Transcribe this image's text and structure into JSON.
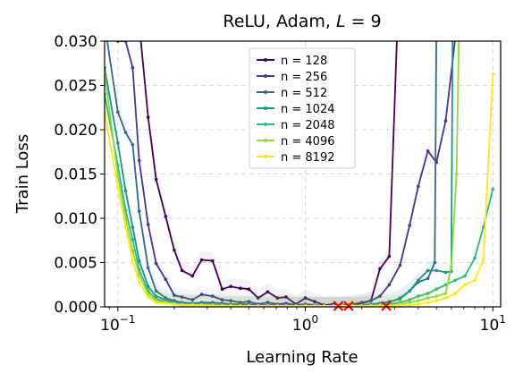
{
  "chart_data": {
    "type": "line",
    "title": "ReLU, Adam, L = 9",
    "xlabel": "Learning Rate",
    "ylabel": "Train Loss",
    "xscale": "log",
    "xlim": [
      0.085,
      11
    ],
    "ylim": [
      0,
      0.03
    ],
    "grid": true,
    "legend_position": "top-center",
    "y_ticks": [
      "0.000",
      "0.005",
      "0.010",
      "0.015",
      "0.020",
      "0.025",
      "0.030"
    ],
    "x_ticks": [
      {
        "value": 0.1,
        "base": "10",
        "exp": "−1"
      },
      {
        "value": 1,
        "base": "10",
        "exp": "0"
      },
      {
        "value": 10,
        "base": "10",
        "exp": "1"
      }
    ],
    "divergence_markers_x": [
      1.5,
      1.7,
      2.7
    ],
    "divergence_marker_color": "#ff0000",
    "series": [
      {
        "name": "n = 128",
        "color": "#440154",
        "x": [
          0.085,
          0.1,
          0.11,
          0.12,
          0.13,
          0.145,
          0.16,
          0.18,
          0.2,
          0.22,
          0.25,
          0.28,
          0.32,
          0.36,
          0.4,
          0.45,
          0.5,
          0.56,
          0.63,
          0.71,
          0.79,
          0.89,
          1.0,
          1.12,
          1.26,
          1.41,
          1.58,
          1.78,
          2.0,
          2.24,
          2.5,
          2.8,
          3.1
        ],
        "y": [
          0.032,
          0.032,
          0.032,
          0.032,
          0.032,
          0.0214,
          0.0144,
          0.0102,
          0.0064,
          0.0041,
          0.0035,
          0.0053,
          0.0052,
          0.002,
          0.0023,
          0.0021,
          0.002,
          0.001,
          0.0017,
          0.001,
          0.0011,
          0.0003,
          0.001,
          0.0006,
          0.0002,
          0.0003,
          0.0001,
          0.0003,
          0.0004,
          0.0007,
          0.0043,
          0.0057,
          0.032
        ]
      },
      {
        "name": "n = 256",
        "color": "#443983",
        "x": [
          0.085,
          0.1,
          0.11,
          0.12,
          0.13,
          0.145,
          0.16,
          0.18,
          0.2,
          0.22,
          0.25,
          0.28,
          0.32,
          0.36,
          0.4,
          0.45,
          0.5,
          0.56,
          0.63,
          0.71,
          0.79,
          0.89,
          1.0,
          1.12,
          1.26,
          1.41,
          1.58,
          1.78,
          2.0,
          2.24,
          2.5,
          2.8,
          3.2,
          3.6,
          4.0,
          4.5,
          5.0,
          5.6,
          6.3,
          6.8
        ],
        "y": [
          0.032,
          0.03,
          0.03,
          0.027,
          0.0165,
          0.0093,
          0.0049,
          0.0031,
          0.0013,
          0.0011,
          0.0008,
          0.0014,
          0.0012,
          0.0008,
          0.0007,
          0.0005,
          0.0006,
          0.0003,
          0.0005,
          0.0003,
          0.0004,
          0.0002,
          0.0003,
          0.0002,
          0.0001,
          0.0001,
          0.0002,
          0.0003,
          0.0005,
          0.0007,
          0.0012,
          0.0025,
          0.0047,
          0.0092,
          0.0136,
          0.0176,
          0.0163,
          0.021,
          0.0303,
          0.032
        ]
      },
      {
        "name": "n = 512",
        "color": "#31688e",
        "x": [
          0.085,
          0.1,
          0.11,
          0.12,
          0.13,
          0.145,
          0.16,
          0.18,
          0.2,
          0.22,
          0.25,
          0.28,
          0.32,
          0.36,
          0.4,
          0.45,
          0.5,
          0.56,
          0.63,
          0.71,
          0.79,
          0.89,
          1.0,
          1.12,
          1.26,
          1.41,
          1.58,
          1.78,
          2.0,
          2.24,
          2.5,
          2.8,
          3.2,
          3.6,
          4.0,
          4.5,
          4.9,
          5.0
        ],
        "y": [
          0.032,
          0.022,
          0.0197,
          0.0183,
          0.0108,
          0.0044,
          0.0018,
          0.001,
          0.0007,
          0.0005,
          0.0004,
          0.0005,
          0.0005,
          0.0004,
          0.0003,
          0.0003,
          0.0003,
          0.0002,
          0.0002,
          0.0002,
          0.0002,
          0.0001,
          0.0001,
          0.0001,
          0.0001,
          0.0001,
          0.0001,
          0.0001,
          0.0002,
          0.0003,
          0.0004,
          0.0006,
          0.0009,
          0.0018,
          0.0028,
          0.0032,
          0.005,
          0.032
        ]
      },
      {
        "name": "n = 1024",
        "color": "#21918c",
        "x": [
          0.085,
          0.1,
          0.11,
          0.12,
          0.13,
          0.145,
          0.16,
          0.18,
          0.2,
          0.22,
          0.25,
          0.28,
          0.32,
          0.36,
          0.4,
          0.45,
          0.5,
          0.56,
          0.63,
          0.71,
          0.79,
          0.89,
          1.0,
          1.12,
          1.26,
          1.41,
          1.58,
          1.78,
          2.0,
          2.24,
          2.5,
          2.8,
          3.2,
          3.6,
          4.0,
          4.5,
          5.0,
          5.6,
          6.0,
          6.1
        ],
        "y": [
          0.027,
          0.0185,
          0.0131,
          0.009,
          0.0052,
          0.0023,
          0.0012,
          0.0008,
          0.0005,
          0.0004,
          0.0003,
          0.0003,
          0.0003,
          0.0002,
          0.0002,
          0.0002,
          0.0002,
          0.0001,
          0.0001,
          0.0001,
          0.0001,
          0.0001,
          0.0001,
          0.0001,
          0.0001,
          0.0001,
          0.0001,
          0.0001,
          0.0001,
          0.0002,
          0.0003,
          0.0005,
          0.001,
          0.0018,
          0.003,
          0.0041,
          0.0041,
          0.0039,
          0.004,
          0.032
        ]
      },
      {
        "name": "n = 2048",
        "color": "#35b779",
        "x": [
          0.085,
          0.1,
          0.11,
          0.12,
          0.13,
          0.145,
          0.16,
          0.18,
          0.2,
          0.22,
          0.25,
          0.28,
          0.32,
          0.36,
          0.4,
          0.45,
          0.5,
          0.56,
          0.63,
          0.71,
          0.79,
          0.89,
          1.0,
          1.12,
          1.26,
          1.41,
          1.58,
          1.78,
          2.0,
          2.24,
          2.5,
          2.8,
          3.2,
          3.6,
          4.0,
          4.5,
          5.0,
          5.6,
          6.3,
          7.1,
          8.0,
          8.9,
          10.0
        ],
        "y": [
          0.024,
          0.016,
          0.0109,
          0.0076,
          0.0042,
          0.0018,
          0.0009,
          0.0006,
          0.0004,
          0.0003,
          0.0003,
          0.0002,
          0.0002,
          0.0002,
          0.0002,
          0.0001,
          0.0001,
          0.0001,
          0.0001,
          0.0001,
          0.0001,
          0.0001,
          0.0001,
          0.0001,
          0.0001,
          0.0001,
          0.0001,
          0.0001,
          0.0001,
          0.0002,
          0.0002,
          0.0003,
          0.0005,
          0.0008,
          0.0012,
          0.0015,
          0.002,
          0.0025,
          0.003,
          0.0035,
          0.0055,
          0.009,
          0.0133
        ]
      },
      {
        "name": "n = 4096",
        "color": "#90d743",
        "x": [
          0.085,
          0.1,
          0.11,
          0.12,
          0.13,
          0.145,
          0.16,
          0.18,
          0.2,
          0.22,
          0.25,
          0.28,
          0.32,
          0.36,
          0.4,
          0.45,
          0.5,
          0.56,
          0.63,
          0.71,
          0.79,
          0.89,
          1.0,
          1.12,
          1.26,
          1.41,
          1.58,
          1.78,
          2.0,
          2.24,
          2.5,
          2.8,
          3.2,
          3.6,
          4.0,
          4.5,
          5.0,
          5.6,
          6.0,
          6.4,
          6.6
        ],
        "y": [
          0.0265,
          0.0148,
          0.01,
          0.0063,
          0.0036,
          0.0014,
          0.0007,
          0.0005,
          0.0003,
          0.0002,
          0.0002,
          0.0002,
          0.0002,
          0.0001,
          0.0001,
          0.0001,
          0.0001,
          0.0001,
          0.0001,
          0.0001,
          0.0001,
          0.0001,
          0.0001,
          0.0001,
          0.0001,
          0.0001,
          0.0001,
          0.0001,
          0.0001,
          0.0001,
          0.0002,
          0.0002,
          0.0003,
          0.0005,
          0.0007,
          0.001,
          0.0012,
          0.0015,
          0.0045,
          0.015,
          0.032
        ]
      },
      {
        "name": "n = 8192",
        "color": "#fde725",
        "x": [
          0.085,
          0.1,
          0.11,
          0.12,
          0.13,
          0.145,
          0.16,
          0.18,
          0.2,
          0.22,
          0.25,
          0.28,
          0.32,
          0.36,
          0.4,
          0.45,
          0.5,
          0.56,
          0.63,
          0.71,
          0.79,
          0.89,
          1.0,
          1.12,
          1.26,
          1.41,
          1.58,
          1.78,
          2.0,
          2.24,
          2.5,
          2.8,
          3.2,
          3.6,
          4.0,
          4.5,
          5.0,
          5.6,
          6.3,
          7.1,
          8.0,
          8.9,
          10.0
        ],
        "y": [
          0.022,
          0.0135,
          0.009,
          0.0052,
          0.0028,
          0.0011,
          0.0005,
          0.0004,
          0.0003,
          0.0002,
          0.0002,
          0.0002,
          0.0001,
          0.0001,
          0.0001,
          0.0001,
          0.0001,
          0.0001,
          0.0001,
          0.0001,
          0.0001,
          0.0001,
          0.0001,
          0.0001,
          0.0001,
          0.0001,
          0.0001,
          0.0001,
          0.0001,
          0.0001,
          0.0001,
          0.0001,
          0.0002,
          0.0002,
          0.0003,
          0.0005,
          0.0007,
          0.001,
          0.0015,
          0.0025,
          0.003,
          0.0053,
          0.0263
        ]
      }
    ]
  }
}
